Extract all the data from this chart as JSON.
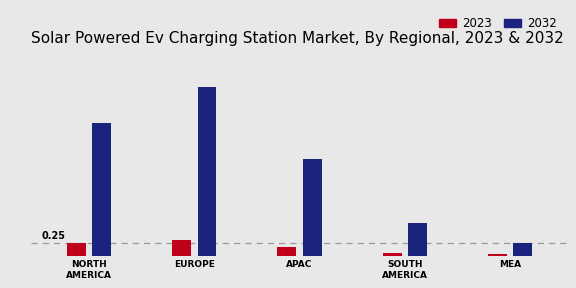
{
  "title": "Solar Powered Ev Charging Station Market, By Regional, 2023 & 2032",
  "categories": [
    "NORTH\nAMERICA",
    "EUROPE",
    "APAC",
    "SOUTH\nAMERICA",
    "MEA"
  ],
  "values_2023": [
    0.25,
    0.32,
    0.18,
    0.06,
    0.04
  ],
  "values_2032": [
    2.6,
    3.3,
    1.9,
    0.65,
    0.25
  ],
  "color_2023": "#c0001a",
  "color_2032": "#1a237e",
  "annotation_text": "0.25",
  "background_color": "#e8e8e8",
  "title_fontsize": 11,
  "label_fontsize": 6.5,
  "legend_fontsize": 8.5,
  "bar_width": 0.18,
  "dashed_line_y": 0.25,
  "ylim": [
    0,
    4.0
  ],
  "bar_gap": 0.06
}
